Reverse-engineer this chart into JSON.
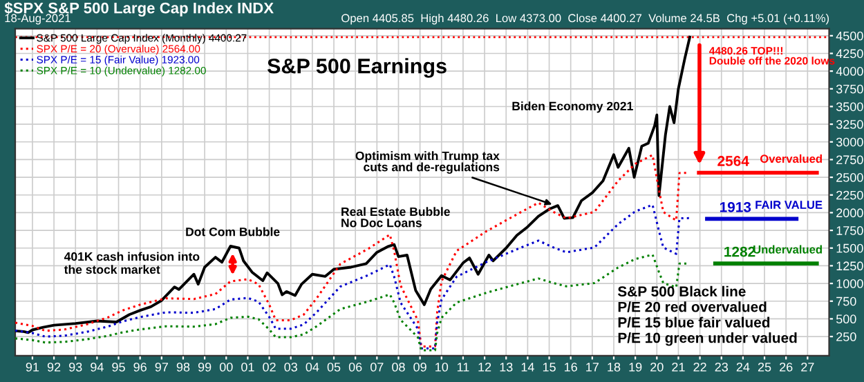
{
  "chart_data": {
    "type": "line",
    "title": "S&P 500 Earnings",
    "subtitle": "18-Aug-2021",
    "x": [
      1990.2,
      1990.6,
      1990.8,
      1991.0,
      1991.5,
      1992.0,
      1993.0,
      1994.0,
      1994.9,
      1995.5,
      1996.0,
      1996.5,
      1997.0,
      1997.6,
      1997.8,
      1998.5,
      1998.7,
      1999.0,
      1999.5,
      1999.8,
      2000.2,
      2000.6,
      2000.8,
      2001.2,
      2001.7,
      2001.9,
      2002.4,
      2002.6,
      2002.8,
      2003.2,
      2003.5,
      2004.0,
      2004.6,
      2005.0,
      2005.8,
      2006.5,
      2007.0,
      2007.5,
      2007.8,
      2008.0,
      2008.4,
      2008.8,
      2009.2,
      2009.5,
      2010.0,
      2010.4,
      2011.0,
      2011.3,
      2011.7,
      2012.2,
      2012.4,
      2013.0,
      2013.5,
      2014.0,
      2014.5,
      2015.0,
      2015.4,
      2015.7,
      2016.1,
      2016.5,
      2017.0,
      2017.5,
      2018.0,
      2018.2,
      2018.7,
      2018.95,
      2019.3,
      2019.6,
      2019.9,
      2020.0,
      2020.1,
      2020.4,
      2020.6,
      2020.8,
      2021.0,
      2021.3,
      2021.53
    ],
    "series": [
      {
        "name": "S&P 500 Large Cap Index (Monthly) 4400.27",
        "color": "#000000",
        "line_style": "solid",
        "values": [
          330,
          320,
          305,
          343,
          380,
          410,
          435,
          470,
          455,
          560,
          620,
          670,
          760,
          950,
          915,
          1130,
          990,
          1230,
          1370,
          1300,
          1527,
          1500,
          1320,
          1160,
          1040,
          1150,
          1000,
          840,
          885,
          830,
          990,
          1130,
          1100,
          1200,
          1230,
          1280,
          1440,
          1520,
          1550,
          1380,
          1400,
          900,
          700,
          920,
          1110,
          1050,
          1290,
          1360,
          1130,
          1400,
          1320,
          1500,
          1680,
          1800,
          1950,
          2050,
          2100,
          1920,
          1930,
          2170,
          2280,
          2450,
          2820,
          2640,
          2910,
          2500,
          2940,
          2980,
          3230,
          3380,
          2240,
          3100,
          3500,
          3270,
          3750,
          4180,
          4480
        ]
      },
      {
        "name": "SPX P/E = 20 (Overvalue) 2564.00",
        "color": "#ff0000",
        "line_style": "dotted",
        "x": [
          1990.2,
          1991.0,
          1991.6,
          1992.5,
          1993.5,
          1994.5,
          1995.2,
          1996.0,
          1997.2,
          1998.5,
          1999.5,
          2000.2,
          2001.0,
          2001.5,
          2002.0,
          2002.3,
          2003.0,
          2003.6,
          2004.2,
          2005.3,
          2006.6,
          2007.6,
          2007.8,
          2008.1,
          2008.9,
          2009.06,
          2009.7,
          2009.8,
          2010.0,
          2010.7,
          2012.1,
          2013.7,
          2014.5,
          2015.2,
          2015.8,
          2017.1,
          2018.2,
          2019.0,
          2019.8,
          2020.1,
          2020.3,
          2020.9,
          2021.05,
          2021.5
        ],
        "values": [
          445,
          400,
          330,
          350,
          420,
          520,
          620,
          700,
          790,
          780,
          850,
          1030,
          1060,
          990,
          700,
          480,
          480,
          560,
          790,
          1275,
          1490,
          1690,
          1460,
          970,
          480,
          110,
          110,
          600,
          1030,
          1460,
          1740,
          2010,
          2140,
          2010,
          1920,
          2010,
          2450,
          2690,
          2815,
          2320,
          2010,
          1890,
          2560,
          2564
        ]
      },
      {
        "name": "SPX P/E = 15 (Fair Value) 1923.00",
        "color": "#0000cc",
        "line_style": "dotted",
        "x": [
          1990.2,
          1991.0,
          1991.6,
          1992.5,
          1993.5,
          1994.5,
          1995.2,
          1996.0,
          1997.2,
          1998.5,
          1999.5,
          2000.2,
          2001.0,
          2001.5,
          2002.0,
          2002.3,
          2003.0,
          2003.6,
          2004.2,
          2005.3,
          2006.6,
          2007.6,
          2007.8,
          2008.1,
          2008.9,
          2009.06,
          2009.7,
          2009.8,
          2010.0,
          2010.7,
          2012.1,
          2013.7,
          2014.5,
          2015.2,
          2015.8,
          2017.1,
          2018.2,
          2019.0,
          2019.8,
          2020.1,
          2020.3,
          2020.9,
          2021.05,
          2021.5
        ],
        "values": [
          334,
          300,
          248,
          263,
          315,
          390,
          465,
          525,
          593,
          585,
          638,
          773,
          795,
          743,
          525,
          360,
          360,
          420,
          593,
          956,
          1118,
          1268,
          1095,
          728,
          360,
          83,
          83,
          450,
          773,
          1095,
          1305,
          1508,
          1605,
          1508,
          1440,
          1508,
          1838,
          2018,
          2111,
          1740,
          1508,
          1418,
          1920,
          1923
        ]
      },
      {
        "name": "SPX P/E = 10 (Undervalue) 1282.00",
        "color": "#008000",
        "line_style": "dotted",
        "x": [
          1990.2,
          1991.0,
          1991.6,
          1992.5,
          1993.5,
          1994.5,
          1995.2,
          1996.0,
          1997.2,
          1998.5,
          1999.5,
          2000.2,
          2001.0,
          2001.5,
          2002.0,
          2002.3,
          2003.0,
          2003.6,
          2004.2,
          2005.3,
          2006.6,
          2007.6,
          2007.8,
          2008.1,
          2008.9,
          2009.06,
          2009.7,
          2009.8,
          2010.0,
          2010.7,
          2012.1,
          2013.7,
          2014.5,
          2015.2,
          2015.8,
          2017.1,
          2018.2,
          2019.0,
          2019.8,
          2020.1,
          2020.3,
          2020.9,
          2021.05,
          2021.5
        ],
        "values": [
          223,
          200,
          165,
          175,
          210,
          260,
          310,
          350,
          395,
          390,
          425,
          515,
          530,
          495,
          350,
          240,
          240,
          280,
          395,
          638,
          745,
          845,
          730,
          485,
          240,
          55,
          55,
          300,
          515,
          730,
          870,
          1005,
          1070,
          1005,
          960,
          1005,
          1225,
          1345,
          1408,
          1160,
          1005,
          945,
          1280,
          1282
        ]
      }
    ],
    "xlim": [
      1990.2,
      2028.0
    ],
    "xticks": [
      {
        "value": 1991,
        "label": "91"
      },
      {
        "value": 1992,
        "label": "92"
      },
      {
        "value": 1993,
        "label": "93"
      },
      {
        "value": 1994,
        "label": "94"
      },
      {
        "value": 1995,
        "label": "95"
      },
      {
        "value": 1996,
        "label": "96"
      },
      {
        "value": 1997,
        "label": "97"
      },
      {
        "value": 1998,
        "label": "98"
      },
      {
        "value": 1999,
        "label": "99"
      },
      {
        "value": 2000,
        "label": "00"
      },
      {
        "value": 2001,
        "label": "01"
      },
      {
        "value": 2002,
        "label": "02"
      },
      {
        "value": 2003,
        "label": "03"
      },
      {
        "value": 2004,
        "label": "04"
      },
      {
        "value": 2005,
        "label": "05"
      },
      {
        "value": 2006,
        "label": "06"
      },
      {
        "value": 2007,
        "label": "07"
      },
      {
        "value": 2008,
        "label": "08"
      },
      {
        "value": 2009,
        "label": "09"
      },
      {
        "value": 2010,
        "label": "10"
      },
      {
        "value": 2011,
        "label": "11"
      },
      {
        "value": 2012,
        "label": "12"
      },
      {
        "value": 2013,
        "label": "13"
      },
      {
        "value": 2014,
        "label": "14"
      },
      {
        "value": 2015,
        "label": "15"
      },
      {
        "value": 2016,
        "label": "16"
      },
      {
        "value": 2017,
        "label": "17"
      },
      {
        "value": 2018,
        "label": "18"
      },
      {
        "value": 2019,
        "label": "19"
      },
      {
        "value": 2020,
        "label": "20"
      },
      {
        "value": 2021,
        "label": "21"
      },
      {
        "value": 2022,
        "label": "22"
      },
      {
        "value": 2023,
        "label": "23"
      },
      {
        "value": 2024,
        "label": "24"
      },
      {
        "value": 2025,
        "label": "25"
      },
      {
        "value": 2026,
        "label": "26"
      },
      {
        "value": 2027,
        "label": "27"
      }
    ],
    "ylim": [
      -20,
      4600
    ],
    "yticks": [
      250,
      500,
      750,
      1000,
      1250,
      1500,
      1750,
      2000,
      2250,
      2500,
      2750,
      3000,
      3250,
      3500,
      3750,
      4000,
      4250,
      4500
    ],
    "grid": true,
    "legend": "top left",
    "ref_lines": [
      {
        "axis": "y",
        "value": 4480.26,
        "color": "#ff0000",
        "line_style": "dotted"
      },
      {
        "axis": "y",
        "value": 2564,
        "label": "Overvalued",
        "color": "#ff0000",
        "line_style": "solid"
      },
      {
        "axis": "y",
        "value": 1913,
        "label": "FAIR VALUE",
        "color": "#0000cc",
        "line_style": "solid"
      },
      {
        "axis": "y",
        "value": 1282,
        "label": "Undervalued",
        "color": "#008000",
        "line_style": "solid"
      }
    ],
    "annotations": [
      "$SPX S&P 500 Large Cap Index INDX",
      "Open 4405.85  High 4480.26  Low 4373.00  Close 4400.27  Volume 24.5B  Chg +5.01 (+0.11%)",
      {
        "text": "4480.26 TOP!!!\nDouble off the 2020 lows",
        "x": 2021.53,
        "y": 4480.26
      },
      "Biden Economy 2021",
      {
        "text": "Optimism with Trump tax\ncuts and de-regulations",
        "x": 2015.3,
        "y": 2100
      },
      "Real Estate Bubble\nNo Doc Loans",
      {
        "text": "Dot Com Bubble",
        "x": 2000.3,
        "y": 1500
      },
      "401K cash infusion into\nthe stock market",
      {
        "text": "2564",
        "x": 2022.8,
        "y": 2564
      },
      {
        "text": "1913",
        "x": 2022.9,
        "y": 1913
      },
      {
        "text": "1282",
        "x": 2023.1,
        "y": 1282
      },
      "S&P 500 Black line\nP/E 20 red overvalued\nP/E 15 blue fair valued\nP/E 10 green under valued"
    ]
  }
}
